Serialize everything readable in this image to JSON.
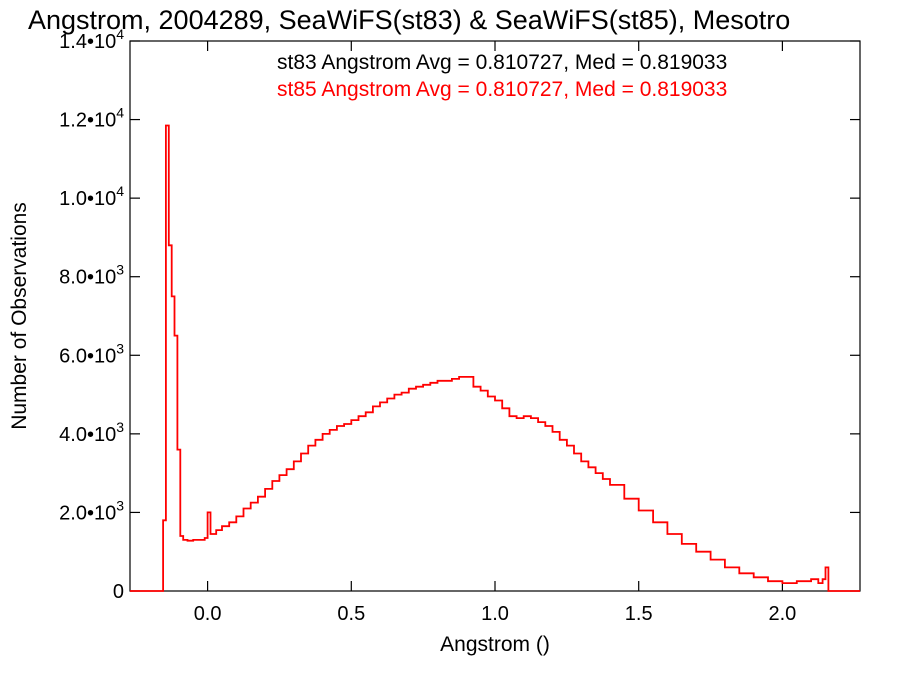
{
  "chart_data": {
    "type": "line",
    "title": "Angstrom, 2004289, SeaWiFS(st83) & SeaWiFS(st85), Mesotro",
    "xlabel": "Angstrom ()",
    "ylabel": "Number of Observations",
    "xlim": [
      -0.27,
      2.27
    ],
    "ylim": [
      0,
      14000
    ],
    "x_ticks": [
      {
        "value": 0.0,
        "label": "0.0"
      },
      {
        "value": 0.5,
        "label": "0.5"
      },
      {
        "value": 1.0,
        "label": "1.0"
      },
      {
        "value": 1.5,
        "label": "1.5"
      },
      {
        "value": 2.0,
        "label": "2.0"
      }
    ],
    "y_ticks": [
      {
        "value": 0,
        "mant": "0",
        "exp": ""
      },
      {
        "value": 2000,
        "mant": "2.0•10",
        "exp": "3"
      },
      {
        "value": 4000,
        "mant": "4.0•10",
        "exp": "3"
      },
      {
        "value": 6000,
        "mant": "6.0•10",
        "exp": "3"
      },
      {
        "value": 8000,
        "mant": "8.0•10",
        "exp": "3"
      },
      {
        "value": 10000,
        "mant": "1.0•10",
        "exp": "4"
      },
      {
        "value": 12000,
        "mant": "1.2•10",
        "exp": "4"
      },
      {
        "value": 14000,
        "mant": "1.4•10",
        "exp": "4"
      }
    ],
    "annotations": [
      {
        "text": "st83 Angstrom Avg = 0.810727, Med = 0.819033",
        "color": "#000000"
      },
      {
        "text": "st85 Angstrom Avg = 0.810727, Med = 0.819033",
        "color": "#ff0000"
      }
    ],
    "series": [
      {
        "color": "#ff0000",
        "x": [
          -0.27,
          -0.16,
          -0.155,
          -0.145,
          -0.135,
          -0.125,
          -0.115,
          -0.105,
          -0.095,
          -0.085,
          -0.07,
          -0.05,
          -0.03,
          -0.01,
          0.0,
          0.01,
          0.03,
          0.05,
          0.075,
          0.1,
          0.125,
          0.15,
          0.175,
          0.2,
          0.225,
          0.25,
          0.275,
          0.3,
          0.325,
          0.35,
          0.375,
          0.4,
          0.425,
          0.45,
          0.475,
          0.5,
          0.525,
          0.55,
          0.575,
          0.6,
          0.625,
          0.65,
          0.675,
          0.7,
          0.725,
          0.75,
          0.775,
          0.8,
          0.825,
          0.85,
          0.875,
          0.9,
          0.925,
          0.95,
          0.975,
          1.0,
          1.025,
          1.05,
          1.075,
          1.1,
          1.125,
          1.15,
          1.175,
          1.2,
          1.225,
          1.25,
          1.275,
          1.3,
          1.325,
          1.35,
          1.375,
          1.4,
          1.45,
          1.5,
          1.55,
          1.6,
          1.65,
          1.7,
          1.75,
          1.8,
          1.85,
          1.9,
          1.95,
          2.0,
          2.05,
          2.1,
          2.125,
          2.14,
          2.15,
          2.16,
          2.27
        ],
        "y": [
          0,
          0,
          1800,
          11850,
          8800,
          7500,
          6500,
          3600,
          1400,
          1300,
          1280,
          1300,
          1300,
          1350,
          2000,
          1450,
          1550,
          1650,
          1750,
          1900,
          2100,
          2250,
          2400,
          2600,
          2800,
          2950,
          3100,
          3300,
          3500,
          3700,
          3850,
          4000,
          4100,
          4200,
          4250,
          4350,
          4450,
          4550,
          4700,
          4800,
          4900,
          5000,
          5050,
          5150,
          5200,
          5250,
          5300,
          5350,
          5350,
          5400,
          5450,
          5450,
          5200,
          5100,
          4950,
          4850,
          4650,
          4450,
          4400,
          4450,
          4400,
          4300,
          4200,
          4050,
          3850,
          3700,
          3500,
          3300,
          3150,
          3000,
          2850,
          2700,
          2350,
          2050,
          1750,
          1450,
          1200,
          1000,
          800,
          600,
          450,
          350,
          250,
          200,
          250,
          300,
          200,
          300,
          600,
          0,
          0
        ]
      }
    ]
  }
}
